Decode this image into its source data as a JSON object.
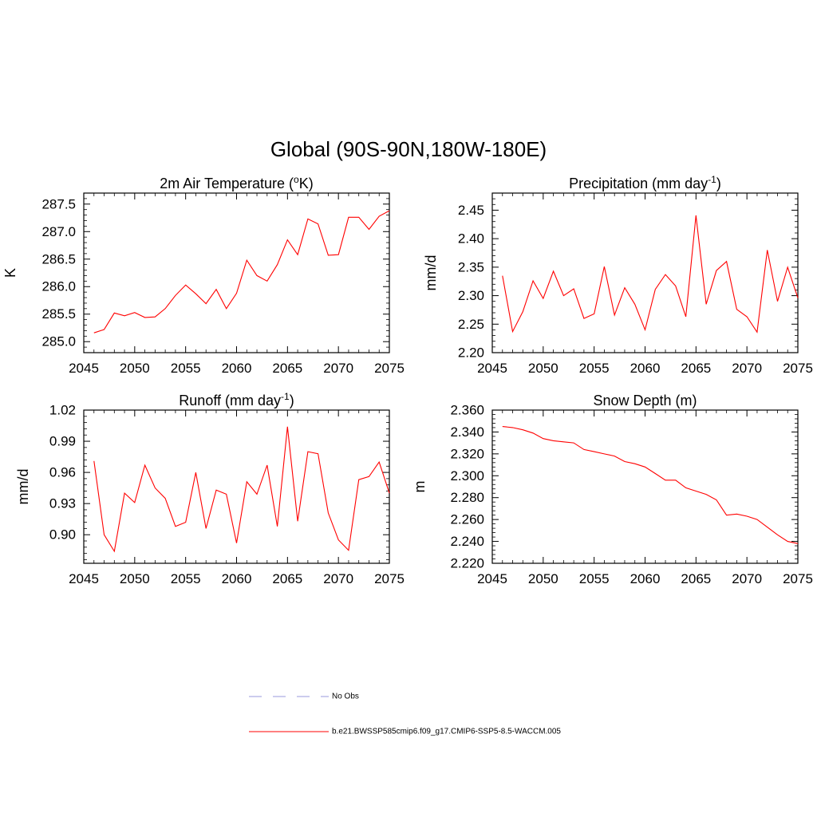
{
  "figure_title": "Global (90S-90N,180W-180E)",
  "legend": [
    {
      "label": "No Obs",
      "style": "dashed",
      "color": "#9999dd"
    },
    {
      "label": "b.e21.BWSSP585cmip6.f09_g17.CMIP6-SSP5-8.5-WACCM.005",
      "style": "solid",
      "color": "#ff0000"
    }
  ],
  "chart_data": [
    {
      "type": "line",
      "title": "2m Air Temperature (",
      "title_sup": "o",
      "title_after": "K)",
      "ylabel": "K",
      "xlabel": "",
      "xlim": [
        2045,
        2075
      ],
      "ylim": [
        284.8,
        287.7
      ],
      "xticks": [
        2045,
        2050,
        2055,
        2060,
        2065,
        2070,
        2075
      ],
      "yticks": [
        285.0,
        285.5,
        286.0,
        286.5,
        287.0,
        287.5
      ],
      "ytick_labels": [
        "285.0",
        "285.5",
        "286.0",
        "286.5",
        "287.0",
        "287.5"
      ],
      "series": [
        {
          "name": "b.e21.BWSSP585cmip6.f09_g17.CMIP6-SSP5-8.5-WACCM.005",
          "color": "#ff0000",
          "x": [
            2046,
            2047,
            2048,
            2049,
            2050,
            2051,
            2052,
            2053,
            2054,
            2055,
            2056,
            2057,
            2058,
            2059,
            2060,
            2061,
            2062,
            2063,
            2064,
            2065,
            2066,
            2067,
            2068,
            2069,
            2070,
            2071,
            2072,
            2073,
            2074,
            2075
          ],
          "values": [
            285.16,
            285.22,
            285.52,
            285.47,
            285.53,
            285.44,
            285.45,
            285.6,
            285.84,
            286.03,
            285.87,
            285.69,
            285.95,
            285.6,
            285.88,
            286.48,
            286.2,
            286.1,
            286.4,
            286.85,
            286.58,
            287.23,
            287.14,
            286.57,
            286.58,
            287.26,
            287.26,
            287.04,
            287.28,
            287.38
          ]
        }
      ]
    },
    {
      "type": "line",
      "title": "Precipitation (mm day",
      "title_sup": "-1",
      "title_after": ")",
      "ylabel": "mm/d",
      "xlabel": "",
      "xlim": [
        2045,
        2075
      ],
      "ylim": [
        2.2,
        2.48
      ],
      "xticks": [
        2045,
        2050,
        2055,
        2060,
        2065,
        2070,
        2075
      ],
      "yticks": [
        2.2,
        2.25,
        2.3,
        2.35,
        2.4,
        2.45
      ],
      "ytick_labels": [
        "2.20",
        "2.25",
        "2.30",
        "2.35",
        "2.40",
        "2.45"
      ],
      "series": [
        {
          "name": "b.e21.BWSSP585cmip6.f09_g17.CMIP6-SSP5-8.5-WACCM.005",
          "color": "#ff0000",
          "x": [
            2046,
            2047,
            2048,
            2049,
            2050,
            2051,
            2052,
            2053,
            2054,
            2055,
            2056,
            2057,
            2058,
            2059,
            2060,
            2061,
            2062,
            2063,
            2064,
            2065,
            2066,
            2067,
            2068,
            2069,
            2070,
            2071,
            2072,
            2073,
            2074,
            2075
          ],
          "values": [
            2.335,
            2.237,
            2.272,
            2.326,
            2.295,
            2.343,
            2.3,
            2.312,
            2.26,
            2.268,
            2.351,
            2.266,
            2.314,
            2.285,
            2.24,
            2.311,
            2.337,
            2.317,
            2.263,
            2.441,
            2.285,
            2.344,
            2.36,
            2.276,
            2.263,
            2.236,
            2.38,
            2.29,
            2.35,
            2.296
          ]
        }
      ]
    },
    {
      "type": "line",
      "title": "Runoff (mm day",
      "title_sup": "-1",
      "title_after": ")",
      "ylabel": "mm/d",
      "xlabel": "",
      "xlim": [
        2045,
        2075
      ],
      "ylim": [
        0.8725,
        1.02
      ],
      "xticks": [
        2045,
        2050,
        2055,
        2060,
        2065,
        2070,
        2075
      ],
      "yticks": [
        0.9,
        0.93,
        0.96,
        0.99,
        1.02
      ],
      "ytick_labels": [
        "0.90",
        "0.93",
        "0.96",
        "0.99",
        "1.02"
      ],
      "series": [
        {
          "name": "b.e21.BWSSP585cmip6.f09_g17.CMIP6-SSP5-8.5-WACCM.005",
          "color": "#ff0000",
          "x": [
            2046,
            2047,
            2048,
            2049,
            2050,
            2051,
            2052,
            2053,
            2054,
            2055,
            2056,
            2057,
            2058,
            2059,
            2060,
            2061,
            2062,
            2063,
            2064,
            2065,
            2066,
            2067,
            2068,
            2069,
            2070,
            2071,
            2072,
            2073,
            2074,
            2075
          ],
          "values": [
            0.971,
            0.9,
            0.884,
            0.94,
            0.931,
            0.967,
            0.945,
            0.935,
            0.908,
            0.912,
            0.96,
            0.906,
            0.943,
            0.939,
            0.892,
            0.951,
            0.939,
            0.967,
            0.908,
            1.004,
            0.913,
            0.98,
            0.978,
            0.921,
            0.895,
            0.885,
            0.953,
            0.956,
            0.97,
            0.94
          ]
        }
      ]
    },
    {
      "type": "line",
      "title": "Snow Depth (m)",
      "title_sup": "",
      "title_after": "",
      "ylabel": "m",
      "xlabel": "",
      "xlim": [
        2045,
        2075
      ],
      "ylim": [
        2.22,
        2.36
      ],
      "xticks": [
        2045,
        2050,
        2055,
        2060,
        2065,
        2070,
        2075
      ],
      "yticks": [
        2.22,
        2.24,
        2.26,
        2.28,
        2.3,
        2.32,
        2.34,
        2.36
      ],
      "ytick_labels": [
        "2.220",
        "2.240",
        "2.260",
        "2.280",
        "2.300",
        "2.320",
        "2.340",
        "2.360"
      ],
      "series": [
        {
          "name": "b.e21.BWSSP585cmip6.f09_g17.CMIP6-SSP5-8.5-WACCM.005",
          "color": "#ff0000",
          "x": [
            2046,
            2047,
            2048,
            2049,
            2050,
            2051,
            2052,
            2053,
            2054,
            2055,
            2056,
            2057,
            2058,
            2059,
            2060,
            2061,
            2062,
            2063,
            2064,
            2065,
            2066,
            2067,
            2068,
            2069,
            2070,
            2071,
            2072,
            2073,
            2074,
            2075
          ],
          "values": [
            2.345,
            2.344,
            2.342,
            2.339,
            2.334,
            2.332,
            2.331,
            2.33,
            2.324,
            2.322,
            2.32,
            2.318,
            2.313,
            2.311,
            2.308,
            2.302,
            2.296,
            2.296,
            2.289,
            2.286,
            2.283,
            2.278,
            2.264,
            2.265,
            2.263,
            2.26,
            2.253,
            2.246,
            2.24,
            2.238
          ]
        }
      ]
    }
  ]
}
